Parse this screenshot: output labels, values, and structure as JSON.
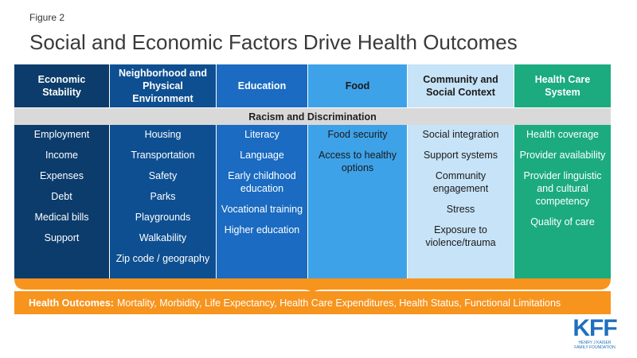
{
  "figure_label": "Figure 2",
  "title": "Social and Economic Factors Drive Health Outcomes",
  "columns": [
    {
      "header": "Economic Stability",
      "head_bg": "#0b3c6b",
      "body_bg": "#0b3c6b",
      "text": "#ffffff",
      "items": [
        "Employment",
        "Income",
        "Expenses",
        "Debt",
        "Medical bills",
        "Support"
      ]
    },
    {
      "header": "Neighborhood and Physical Environment",
      "head_bg": "#0e4f91",
      "body_bg": "#0e4f91",
      "text": "#ffffff",
      "items": [
        "Housing",
        "Transportation",
        "Safety",
        "Parks",
        "Playgrounds",
        "Walkability",
        "Zip code / geography"
      ]
    },
    {
      "header": "Education",
      "head_bg": "#1a6bc1",
      "body_bg": "#1a6bc1",
      "text": "#ffffff",
      "items": [
        "Literacy",
        "Language",
        "Early childhood education",
        "Vocational training",
        "Higher education"
      ]
    },
    {
      "header": "Food",
      "head_bg": "#3ea2e8",
      "body_bg": "#3ea2e8",
      "text": "#1a1a1a",
      "items": [
        "Food security",
        "Access to healthy options"
      ]
    },
    {
      "header": "Community and Social Context",
      "head_bg": "#c7e3f7",
      "body_bg": "#c7e3f7",
      "text": "#1a1a1a",
      "items": [
        "Social integration",
        "Support systems",
        "Community engagement",
        "Stress",
        "Exposure to violence/trauma"
      ]
    },
    {
      "header": "Health Care System",
      "head_bg": "#1bab7e",
      "body_bg": "#1bab7e",
      "text": "#ffffff",
      "items": [
        "Health coverage",
        "Provider availability",
        "Provider linguistic and cultural competency",
        "Quality of care"
      ]
    }
  ],
  "racism_bar": "Racism and Discrimination",
  "outcomes": {
    "label": "Health Outcomes:",
    "text": "Mortality, Morbidity, Life Expectancy, Health Care Expenditures, Health Status, Functional Limitations",
    "color": "#f7941d"
  },
  "logo": {
    "main": "KFF",
    "sub1": "HENRY J KAISER",
    "sub2": "FAMILY FOUNDATION"
  }
}
